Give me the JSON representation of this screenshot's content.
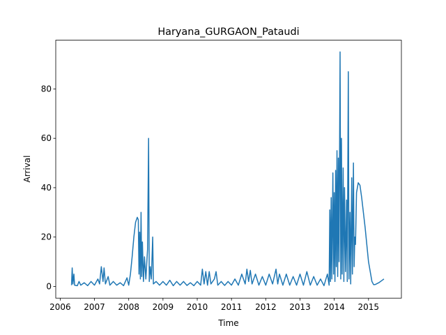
{
  "chart_data": {
    "type": "line",
    "title": "Haryana_GURGAON_Pataudi",
    "x_label": "Time",
    "y_label": "Arrival",
    "color": "#1f77b4",
    "x": [
      2006.33,
      2006.35,
      2006.37,
      2006.4,
      2006.42,
      2006.5,
      2006.55,
      2006.6,
      2006.7,
      2006.8,
      2006.9,
      2007.0,
      2007.1,
      2007.15,
      2007.2,
      2007.25,
      2007.28,
      2007.32,
      2007.4,
      2007.45,
      2007.55,
      2007.65,
      2007.75,
      2007.85,
      2007.95,
      2008.0,
      2008.05,
      2008.1,
      2008.15,
      2008.2,
      2008.25,
      2008.28,
      2008.3,
      2008.32,
      2008.34,
      2008.36,
      2008.38,
      2008.4,
      2008.43,
      2008.46,
      2008.5,
      2008.55,
      2008.58,
      2008.6,
      2008.63,
      2008.66,
      2008.7,
      2008.72,
      2008.8,
      2008.9,
      2009.0,
      2009.1,
      2009.2,
      2009.3,
      2009.4,
      2009.5,
      2009.6,
      2009.7,
      2009.8,
      2009.9,
      2010.0,
      2010.1,
      2010.15,
      2010.2,
      2010.25,
      2010.3,
      2010.35,
      2010.4,
      2010.5,
      2010.55,
      2010.6,
      2010.7,
      2010.8,
      2010.9,
      2011.0,
      2011.1,
      2011.2,
      2011.3,
      2011.4,
      2011.45,
      2011.5,
      2011.55,
      2011.6,
      2011.7,
      2011.8,
      2011.9,
      2012.0,
      2012.1,
      2012.2,
      2012.3,
      2012.35,
      2012.4,
      2012.5,
      2012.6,
      2012.7,
      2012.8,
      2012.9,
      2013.0,
      2013.1,
      2013.2,
      2013.3,
      2013.4,
      2013.5,
      2013.6,
      2013.7,
      2013.8,
      2013.85,
      2013.87,
      2013.89,
      2013.91,
      2013.93,
      2013.96,
      2013.98,
      2014.0,
      2014.02,
      2014.04,
      2014.06,
      2014.08,
      2014.1,
      2014.12,
      2014.14,
      2014.17,
      2014.19,
      2014.21,
      2014.23,
      2014.26,
      2014.28,
      2014.3,
      2014.33,
      2014.36,
      2014.38,
      2014.41,
      2014.43,
      2014.46,
      2014.48,
      2014.51,
      2014.53,
      2014.56,
      2014.58,
      2014.6,
      2014.62,
      2014.65,
      2014.7,
      2014.75,
      2014.8,
      2014.9,
      2015.0,
      2015.1,
      2015.15,
      2015.2,
      2015.3,
      2015.4,
      2015.45
    ],
    "values": [
      0.5,
      7.5,
      1,
      5,
      0.5,
      0.3,
      2,
      0.5,
      1.5,
      0.3,
      2,
      0.5,
      3,
      1,
      8,
      2,
      7.5,
      1,
      4,
      0.5,
      2,
      0.5,
      1.5,
      0.3,
      3.5,
      0.5,
      5,
      12,
      20,
      26,
      28,
      27,
      5,
      22,
      3,
      30,
      4,
      18,
      2,
      12,
      3,
      15,
      60,
      2,
      8,
      3,
      20,
      1,
      2,
      0.5,
      2,
      0.5,
      2.5,
      0.3,
      2,
      0.5,
      2,
      0.4,
      1.5,
      0.3,
      2,
      0.5,
      7,
      1,
      6,
      0.5,
      6,
      1,
      3,
      6,
      0.5,
      2,
      0.4,
      2,
      0.5,
      3,
      0.5,
      5,
      1,
      7,
      2,
      6.5,
      1,
      5,
      0.5,
      4,
      0.5,
      5,
      1,
      7,
      1,
      5,
      0.5,
      5,
      0.5,
      4,
      0.5,
      5,
      0.5,
      6,
      0.5,
      4,
      0.5,
      3,
      0.3,
      5,
      0.5,
      31,
      2,
      36,
      3,
      46,
      5,
      38,
      2,
      47,
      8,
      55,
      4,
      52,
      10,
      95,
      3,
      60,
      5,
      48,
      2,
      40,
      6,
      35,
      2,
      87,
      3,
      30,
      1,
      44,
      5,
      50,
      8,
      20,
      17,
      38,
      42,
      41,
      36,
      24,
      10,
      2,
      0.7,
      0.8,
      1.5,
      2.5,
      3
    ],
    "xlim": [
      2005.87,
      2015.96
    ],
    "xticks": [
      2006,
      2007,
      2008,
      2009,
      2010,
      2011,
      2012,
      2013,
      2014,
      2015
    ],
    "ylim": [
      -4.75,
      99.75
    ],
    "yticks": [
      0,
      20,
      40,
      60,
      80
    ]
  }
}
